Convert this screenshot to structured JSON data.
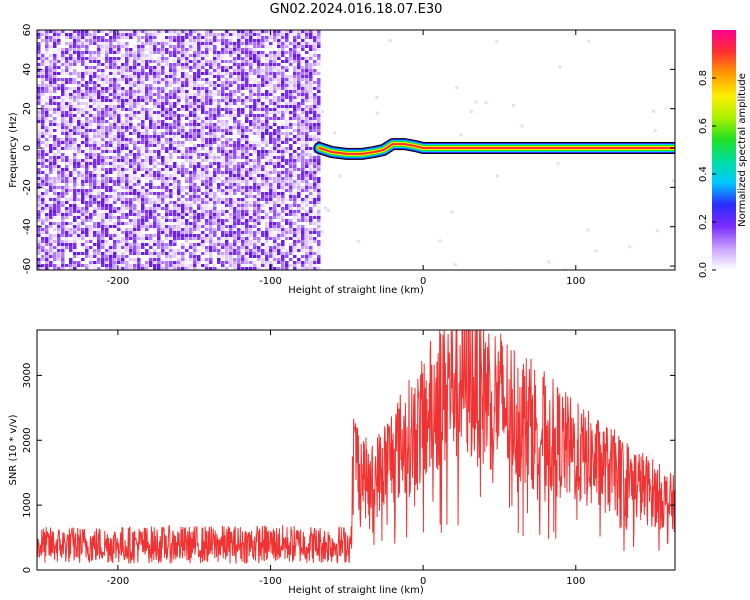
{
  "title": "GN02.2024.016.18.07.E30",
  "chart_data": [
    {
      "type": "heatmap",
      "xlabel": "Height of straight line (km)",
      "ylabel": "Frequency (Hz)",
      "xlim": [
        -253,
        165
      ],
      "ylim": [
        -62,
        60
      ],
      "x_ticks": [
        -200,
        -100,
        0,
        100
      ],
      "y_ticks": [
        -60,
        -40,
        -20,
        0,
        20,
        40,
        60
      ],
      "noise_region_x": [
        -253,
        -68
      ],
      "signal_trace": {
        "x": [
          -68,
          -60,
          -50,
          -40,
          -32,
          -26,
          -20,
          -12,
          -5,
          0,
          20,
          60,
          100,
          140,
          165
        ],
        "frequency": [
          0,
          -2,
          -3,
          -3,
          -2,
          -1,
          2,
          2,
          1,
          0,
          0,
          0,
          0,
          0,
          0
        ]
      },
      "colorbar": {
        "label": "Normalized spectral amplitude",
        "ticks": [
          0.0,
          0.2,
          0.4,
          0.6,
          0.8
        ],
        "range": [
          0,
          1
        ],
        "colors": [
          "#ffffff",
          "#c8a0ff",
          "#7b2cff",
          "#2b2bff",
          "#00c8ff",
          "#00e0a0",
          "#20e020",
          "#b0f000",
          "#ffee00",
          "#ff9a00",
          "#ff3030",
          "#ff0090"
        ]
      }
    },
    {
      "type": "line",
      "xlabel": "Height of straight line (km)",
      "ylabel": "SNR (10 * v/v)",
      "xlim": [
        -253,
        165
      ],
      "ylim": [
        0,
        3700
      ],
      "x_ticks": [
        -200,
        -100,
        0,
        100
      ],
      "y_ticks": [
        0,
        1000,
        2000,
        3000
      ],
      "color": "#f03232",
      "series": [
        {
          "x": [
            -253,
            -200,
            -150,
            -100,
            -60,
            -47,
            -46,
            -35,
            -20,
            0,
            10,
            20,
            30,
            50,
            75,
            100,
            125,
            150,
            165
          ],
          "y": [
            380,
            390,
            390,
            400,
            390,
            400,
            1800,
            1300,
            1800,
            2250,
            2700,
            2950,
            3000,
            2600,
            2200,
            1800,
            1500,
            1200,
            1000
          ]
        }
      ]
    }
  ]
}
